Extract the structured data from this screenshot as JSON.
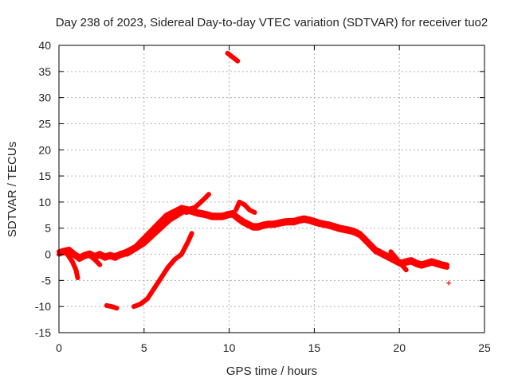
{
  "chart_data": {
    "type": "scatter",
    "title": "Day 238 of 2023, Sidereal Day-to-day VTEC variation (SDTVAR) for receiver tuo2",
    "xlabel": "GPS time / hours",
    "ylabel": "SDTVAR / TECUs",
    "xlim": [
      0,
      25
    ],
    "ylim": [
      -15,
      40
    ],
    "xticks": [
      0,
      5,
      10,
      15,
      20,
      25
    ],
    "yticks": [
      -15,
      -10,
      -5,
      0,
      5,
      10,
      15,
      20,
      25,
      30,
      35,
      40
    ],
    "grid": true,
    "legend": "none",
    "marker": "+",
    "color": "#ff0000",
    "series": [
      {
        "name": "main-band-a",
        "x": [
          0.0,
          0.3,
          0.6,
          0.9,
          1.2,
          1.5,
          1.8,
          2.1,
          2.4,
          2.7,
          3.0,
          3.3,
          3.6,
          3.9,
          4.2,
          4.5,
          4.8,
          5.1,
          5.4,
          5.7,
          6.0,
          6.3,
          6.6,
          6.9,
          7.2,
          7.5,
          7.8,
          8.1,
          8.4,
          8.7,
          9.0,
          9.3,
          9.6,
          9.9,
          10.2,
          10.5,
          10.8,
          11.1,
          11.4,
          11.7,
          12.0,
          12.3,
          12.6,
          12.9,
          13.2,
          13.5,
          13.8,
          14.1,
          14.4,
          14.7,
          15.0,
          15.3,
          15.6,
          15.9,
          16.2,
          16.5,
          16.8,
          17.1,
          17.4,
          17.7,
          18.0,
          18.3,
          18.6,
          18.9,
          19.2,
          19.5,
          19.8,
          20.1,
          20.4,
          20.7,
          21.0,
          21.3,
          21.6,
          21.9,
          22.2,
          22.5,
          22.8
        ],
        "y": [
          0.5,
          0.8,
          1.0,
          0.2,
          -0.5,
          0.0,
          0.3,
          -0.2,
          0.2,
          -0.3,
          0.0,
          -0.3,
          0.2,
          0.5,
          1.0,
          1.5,
          2.5,
          3.5,
          4.5,
          5.5,
          6.5,
          7.5,
          8.0,
          8.5,
          9.0,
          8.8,
          8.5,
          8.2,
          8.0,
          7.8,
          7.5,
          7.5,
          7.5,
          7.8,
          8.0,
          7.2,
          6.5,
          6.0,
          5.5,
          5.5,
          5.8,
          6.0,
          6.0,
          6.2,
          6.4,
          6.5,
          6.5,
          6.8,
          7.0,
          6.8,
          6.5,
          6.2,
          6.0,
          5.8,
          5.5,
          5.2,
          5.0,
          4.8,
          4.5,
          4.0,
          3.0,
          2.0,
          1.0,
          0.5,
          0.0,
          -0.5,
          -1.0,
          -1.5,
          -1.2,
          -1.0,
          -1.5,
          -1.8,
          -1.5,
          -1.2,
          -1.5,
          -1.8,
          -2.0
        ]
      },
      {
        "name": "main-band-b",
        "x": [
          0.0,
          0.3,
          0.6,
          0.9,
          1.2,
          1.5,
          1.8,
          2.1,
          2.4,
          2.7,
          3.0,
          3.3,
          3.6,
          3.9,
          4.2,
          4.5,
          4.8,
          5.1,
          5.4,
          5.7,
          6.0,
          6.3,
          6.6,
          6.9,
          7.2,
          7.5,
          7.8,
          8.1,
          8.4,
          8.7,
          9.0,
          9.3,
          9.6,
          9.9,
          10.2,
          10.5,
          10.8,
          11.1,
          11.4,
          11.7,
          12.0,
          12.3,
          12.6,
          12.9,
          13.2,
          13.5,
          13.8,
          14.1,
          14.4,
          14.7,
          15.0,
          15.3,
          15.6,
          15.9,
          16.2,
          16.5,
          16.8,
          17.1,
          17.4,
          17.7,
          18.0,
          18.3,
          18.6,
          18.9,
          19.2,
          19.5,
          19.8,
          20.1,
          20.4,
          20.7,
          21.0,
          21.3,
          21.6,
          21.9,
          22.2,
          22.5,
          22.8
        ],
        "y": [
          0.0,
          0.3,
          0.5,
          -0.3,
          -1.0,
          -0.5,
          -0.2,
          -0.7,
          -0.3,
          -0.8,
          -0.5,
          -0.8,
          -0.3,
          0.0,
          0.5,
          1.0,
          2.0,
          3.0,
          4.0,
          5.0,
          6.0,
          7.0,
          7.5,
          8.0,
          8.5,
          8.3,
          8.0,
          7.7,
          7.5,
          7.3,
          7.0,
          7.0,
          7.0,
          7.3,
          7.5,
          6.7,
          6.0,
          5.5,
          5.0,
          5.0,
          5.3,
          5.5,
          5.5,
          5.7,
          5.9,
          6.0,
          6.0,
          6.3,
          6.5,
          6.3,
          6.0,
          5.7,
          5.5,
          5.3,
          5.0,
          4.7,
          4.5,
          4.3,
          4.0,
          3.5,
          2.5,
          1.5,
          0.5,
          0.0,
          -0.5,
          -1.0,
          -1.5,
          -2.0,
          -1.7,
          -1.5,
          -2.0,
          -2.3,
          -2.0,
          -1.7,
          -2.0,
          -2.3,
          -2.5
        ]
      },
      {
        "name": "early-upper",
        "x": [
          3.0,
          3.5,
          4.0,
          4.5,
          5.0,
          5.5,
          6.0,
          6.5,
          7.0,
          7.5,
          8.0,
          8.5,
          8.8
        ],
        "y": [
          -0.5,
          0.0,
          0.3,
          1.5,
          3.0,
          4.5,
          6.0,
          7.5,
          8.5,
          8.0,
          9.0,
          10.5,
          11.5
        ]
      },
      {
        "name": "early-lower",
        "x": [
          4.0,
          4.5,
          5.0,
          5.5,
          6.0,
          6.5,
          7.0,
          7.5,
          8.0
        ],
        "y": [
          0.0,
          1.0,
          2.0,
          3.5,
          5.0,
          6.5,
          7.5,
          8.5,
          9.0
        ]
      },
      {
        "name": "left-spur-1",
        "x": [
          0.2,
          0.5,
          0.8,
          1.0,
          1.1
        ],
        "y": [
          0.5,
          0.0,
          -1.5,
          -3.0,
          -4.5
        ]
      },
      {
        "name": "left-spur-2",
        "x": [
          1.8,
          2.1,
          2.4
        ],
        "y": [
          -0.2,
          -1.0,
          -2.0
        ]
      },
      {
        "name": "rising-trace",
        "x": [
          4.4,
          4.8,
          5.2,
          5.6,
          6.0,
          6.4,
          6.8,
          7.2,
          7.6,
          7.8
        ],
        "y": [
          -10.0,
          -9.5,
          -8.5,
          -6.5,
          -4.5,
          -2.5,
          -1.0,
          0.0,
          2.5,
          4.0
        ]
      },
      {
        "name": "short-segment",
        "x": [
          2.8,
          3.1,
          3.4
        ],
        "y": [
          -9.8,
          -10.0,
          -10.3
        ]
      },
      {
        "name": "spike-segment",
        "x": [
          9.9,
          10.3,
          10.5
        ],
        "y": [
          38.5,
          37.5,
          37.0
        ]
      },
      {
        "name": "bump-segment",
        "x": [
          10.4,
          10.6,
          10.9,
          11.2,
          11.5
        ],
        "y": [
          8.5,
          10.0,
          9.5,
          8.5,
          8.0
        ]
      },
      {
        "name": "late-spur",
        "x": [
          19.5,
          20.0,
          20.4
        ],
        "y": [
          0.5,
          -1.5,
          -3.0
        ]
      }
    ],
    "outliers": [
      {
        "x": 22.9,
        "y": -5.5
      }
    ]
  }
}
